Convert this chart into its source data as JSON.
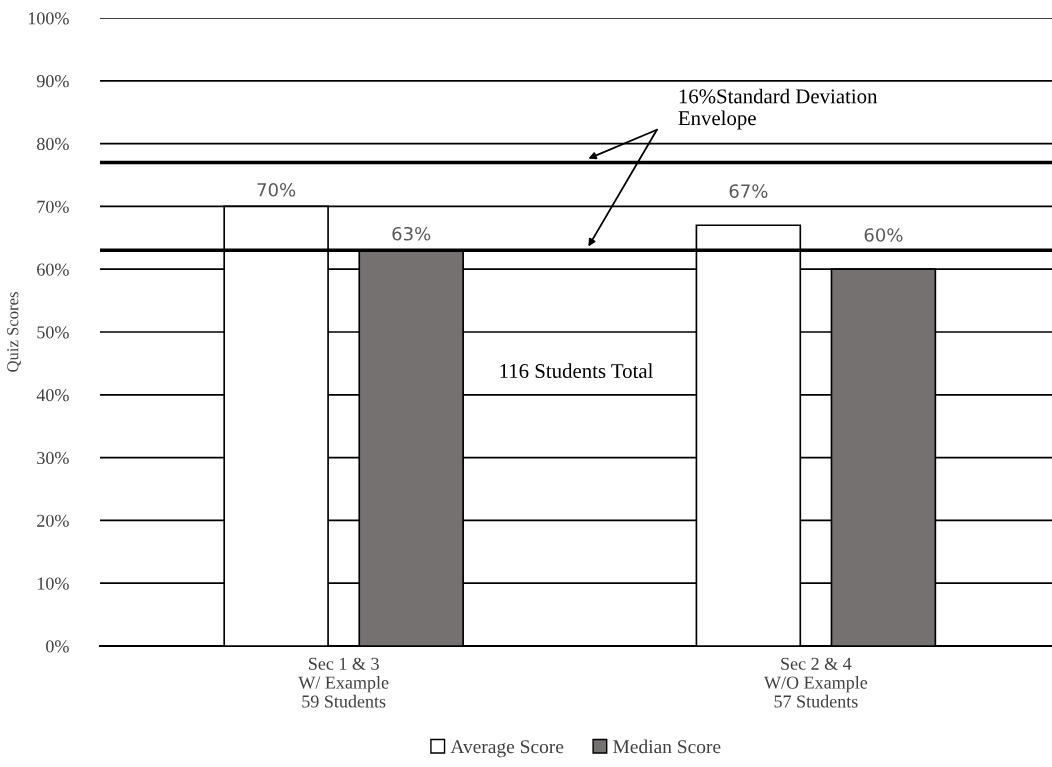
{
  "chart_data": {
    "type": "bar",
    "ylabel": "Quiz Scores",
    "categories": [
      "Sec 1 & 3\nW/ Example\n59 Students",
      "Sec 2 & 4\nW/O Example\n57 Students"
    ],
    "series": [
      {
        "name": "Average Score",
        "color": "#ffffff",
        "values": [
          70,
          67
        ],
        "value_labels": [
          "70%",
          "67%"
        ]
      },
      {
        "name": "Median Score",
        "color": "#757171",
        "values": [
          63,
          60
        ],
        "value_labels": [
          "63%",
          "60%"
        ]
      }
    ],
    "ylim": [
      0,
      100
    ],
    "yticks": [
      {
        "value": 0,
        "label": "0%"
      },
      {
        "value": 10,
        "label": "10%"
      },
      {
        "value": 20,
        "label": "20%"
      },
      {
        "value": 30,
        "label": "30%"
      },
      {
        "value": 40,
        "label": "40%"
      },
      {
        "value": 50,
        "label": "50%"
      },
      {
        "value": 60,
        "label": "60%"
      },
      {
        "value": 70,
        "label": "70%"
      },
      {
        "value": 80,
        "label": "80%"
      },
      {
        "value": 90,
        "label": "90%"
      },
      {
        "value": 100,
        "label": "100%"
      }
    ],
    "ref_lines": [
      {
        "axis": "y",
        "value": 77,
        "label": "16%Standard Deviation\nEnvelope",
        "color": "#000000"
      },
      {
        "axis": "y",
        "value": 63,
        "color": "#000000"
      }
    ],
    "annotations": [
      "116 Students Total"
    ],
    "grid": "y",
    "legend": "bottom"
  }
}
